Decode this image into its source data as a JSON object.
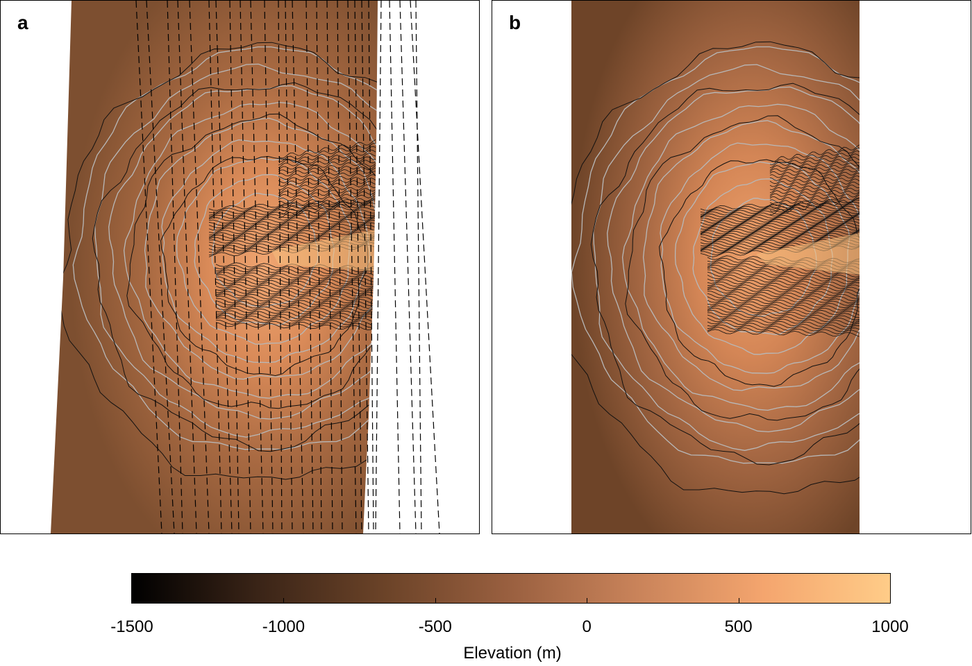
{
  "panels": [
    {
      "label": "a"
    },
    {
      "label": "b"
    }
  ],
  "colorbar": {
    "title": "Elevation (m)",
    "min": -1500,
    "max": 1000,
    "ticks": [
      "-1500",
      "-1000",
      "-500",
      "0",
      "500",
      "1000"
    ],
    "colors": [
      "#000000",
      "#3a2417",
      "#6b4328",
      "#9a6040",
      "#c9835a",
      "#f4a56e",
      "#ffcc88"
    ]
  }
}
